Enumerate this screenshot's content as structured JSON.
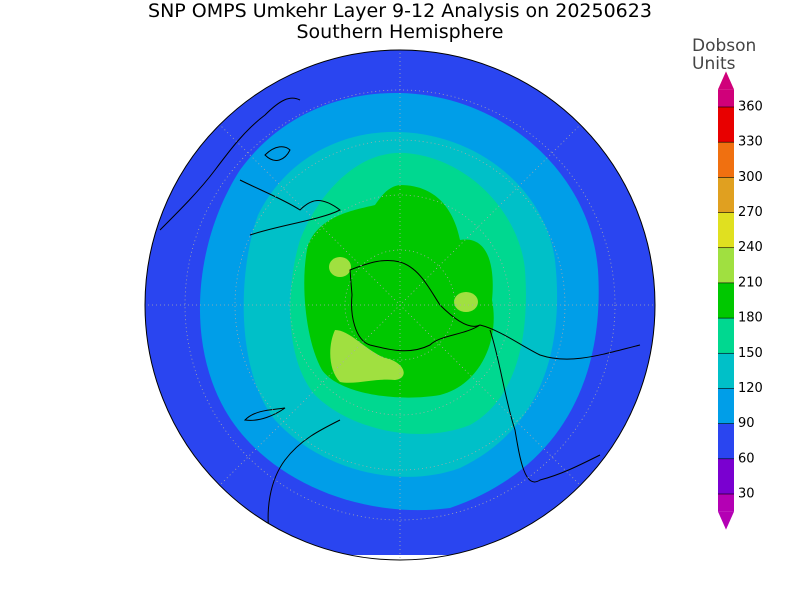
{
  "title": "SNP OMPS Umkehr Layer 9-12 Analysis on 20250623",
  "subtitle": "Southern Hemisphere",
  "colorbar": {
    "label_lines": [
      "Dobson",
      "Units"
    ],
    "ticks": [
      30,
      60,
      90,
      120,
      150,
      180,
      210,
      240,
      270,
      300,
      330,
      360
    ],
    "colors": [
      "#b400b4",
      "#7a00d0",
      "#2a45f0",
      "#009ee8",
      "#00c0c8",
      "#00d890",
      "#00c800",
      "#a0e040",
      "#e0e020",
      "#e0a020",
      "#f07010",
      "#e80000",
      "#d0007a"
    ]
  }
}
